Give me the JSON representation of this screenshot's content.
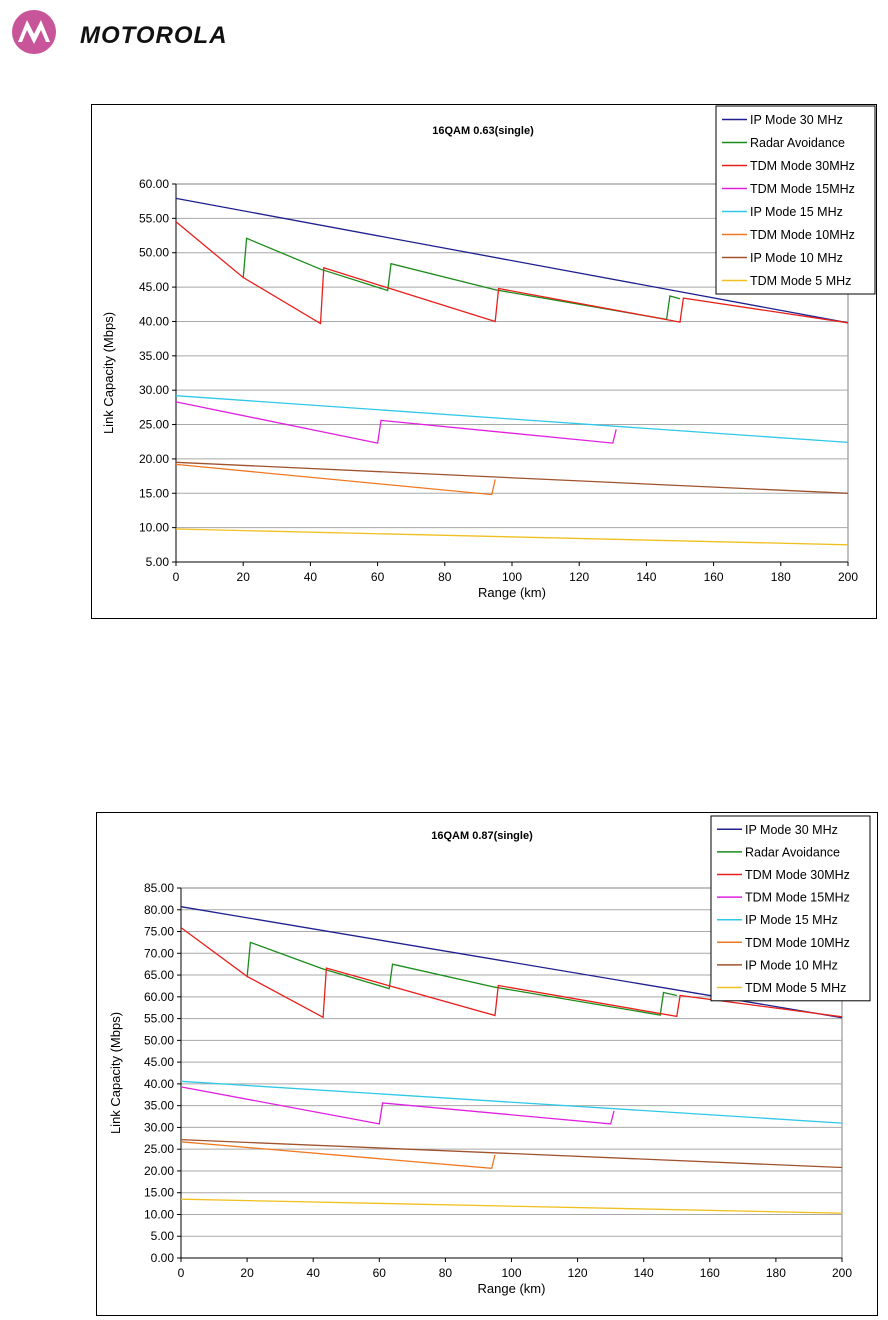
{
  "logo": {
    "brand": "MOTOROLA",
    "icon": "motorola-batwing-icon",
    "color": "#c8549a"
  },
  "chart_data": [
    {
      "type": "line",
      "title": "16QAM 0.63(single)",
      "xlabel": "Range (km)",
      "ylabel": "Link Capacity (Mbps)",
      "xlim": [
        0,
        200
      ],
      "ylim": [
        5,
        60
      ],
      "xticks": [
        "0",
        "20",
        "40",
        "60",
        "80",
        "100",
        "120",
        "140",
        "160",
        "180",
        "200"
      ],
      "yticks": [
        "5.00",
        "10.00",
        "15.00",
        "20.00",
        "25.00",
        "30.00",
        "35.00",
        "40.00",
        "45.00",
        "50.00",
        "55.00",
        "60.00"
      ],
      "grid": true,
      "legend": "top-right",
      "series": [
        {
          "name": "IP Mode 30 MHz",
          "color": "#1f1f8f",
          "points": [
            [
              0,
              57.9
            ],
            [
              200,
              39.8
            ]
          ]
        },
        {
          "name": "Radar Avoidance",
          "color": "#1a8c1a",
          "points": [
            [
              20,
              46.3
            ],
            [
              21,
              52.1
            ],
            [
              43,
              47.6
            ],
            [
              63,
              44.5
            ],
            [
              64,
              48.4
            ],
            [
              95,
              44.6
            ],
            [
              146,
              40.3
            ],
            [
              147,
              43.7
            ],
            [
              150,
              43.3
            ]
          ]
        },
        {
          "name": "TDM Mode 30MHz",
          "color": "#e8201c",
          "points": [
            [
              0,
              54.5
            ],
            [
              20,
              46.4
            ],
            [
              43,
              39.7
            ],
            [
              44,
              47.8
            ],
            [
              95,
              40.0
            ],
            [
              96,
              44.8
            ],
            [
              150,
              39.9
            ],
            [
              151,
              43.4
            ],
            [
              200,
              39.8
            ]
          ]
        },
        {
          "name": "TDM Mode 15MHz",
          "color": "#e020e0",
          "points": [
            [
              0,
              28.3
            ],
            [
              60,
              22.3
            ],
            [
              61,
              25.6
            ],
            [
              130,
              22.3
            ],
            [
              131,
              24.3
            ]
          ]
        },
        {
          "name": "IP Mode 15 MHz",
          "color": "#30c8e8",
          "points": [
            [
              0,
              29.2
            ],
            [
              200,
              22.4
            ]
          ]
        },
        {
          "name": "TDM Mode 10MHz",
          "color": "#f07820",
          "points": [
            [
              0,
              19.2
            ],
            [
              94,
              14.8
            ],
            [
              95,
              17.0
            ]
          ]
        },
        {
          "name": "IP Mode 10 MHz",
          "color": "#a0522d",
          "points": [
            [
              0,
              19.5
            ],
            [
              200,
              15.0
            ]
          ]
        },
        {
          "name": "TDM Mode 5 MHz",
          "color": "#f0c020",
          "points": [
            [
              0,
              9.8
            ],
            [
              200,
              7.5
            ]
          ]
        }
      ]
    },
    {
      "type": "line",
      "title": "16QAM 0.87(single)",
      "xlabel": "Range (km)",
      "ylabel": "Link Capacity (Mbps)",
      "xlim": [
        0,
        200
      ],
      "ylim": [
        0,
        85
      ],
      "xticks": [
        "0",
        "20",
        "40",
        "60",
        "80",
        "100",
        "120",
        "140",
        "160",
        "180",
        "200"
      ],
      "yticks": [
        "0.00",
        "5.00",
        "10.00",
        "15.00",
        "20.00",
        "25.00",
        "30.00",
        "35.00",
        "40.00",
        "45.00",
        "50.00",
        "55.00",
        "60.00",
        "65.00",
        "70.00",
        "75.00",
        "80.00",
        "85.00"
      ],
      "grid": true,
      "legend": "top-right",
      "series": [
        {
          "name": "IP Mode 30 MHz",
          "color": "#1f1f8f",
          "points": [
            [
              0,
              80.7
            ],
            [
              200,
              55.2
            ]
          ]
        },
        {
          "name": "Radar Avoidance",
          "color": "#1a8c1a",
          "points": [
            [
              20,
              64.5
            ],
            [
              21,
              72.5
            ],
            [
              43,
              66.4
            ],
            [
              63,
              61.9
            ],
            [
              64,
              67.5
            ],
            [
              95,
              62.2
            ],
            [
              145,
              55.8
            ],
            [
              146,
              61.0
            ],
            [
              150,
              60.3
            ]
          ]
        },
        {
          "name": "TDM Mode 30MHz",
          "color": "#e8201c",
          "points": [
            [
              0,
              75.9
            ],
            [
              20,
              64.7
            ],
            [
              43,
              55.3
            ],
            [
              44,
              66.6
            ],
            [
              95,
              55.7
            ],
            [
              96,
              62.6
            ],
            [
              150,
              55.5
            ],
            [
              151,
              60.3
            ],
            [
              200,
              55.4
            ]
          ]
        },
        {
          "name": "TDM Mode 15MHz",
          "color": "#e020e0",
          "points": [
            [
              0,
              39.3
            ],
            [
              60,
              30.8
            ],
            [
              61,
              35.6
            ],
            [
              130,
              30.8
            ],
            [
              131,
              33.8
            ]
          ]
        },
        {
          "name": "IP Mode 15 MHz",
          "color": "#30c8e8",
          "points": [
            [
              0,
              40.6
            ],
            [
              200,
              31.0
            ]
          ]
        },
        {
          "name": "TDM Mode 10MHz",
          "color": "#f07820",
          "points": [
            [
              0,
              26.7
            ],
            [
              94,
              20.6
            ],
            [
              95,
              23.7
            ]
          ]
        },
        {
          "name": "IP Mode 10 MHz",
          "color": "#a0522d",
          "points": [
            [
              0,
              27.2
            ],
            [
              200,
              20.8
            ]
          ]
        },
        {
          "name": "TDM Mode 5 MHz",
          "color": "#f0c020",
          "points": [
            [
              0,
              13.5
            ],
            [
              200,
              10.3
            ]
          ]
        }
      ]
    }
  ]
}
